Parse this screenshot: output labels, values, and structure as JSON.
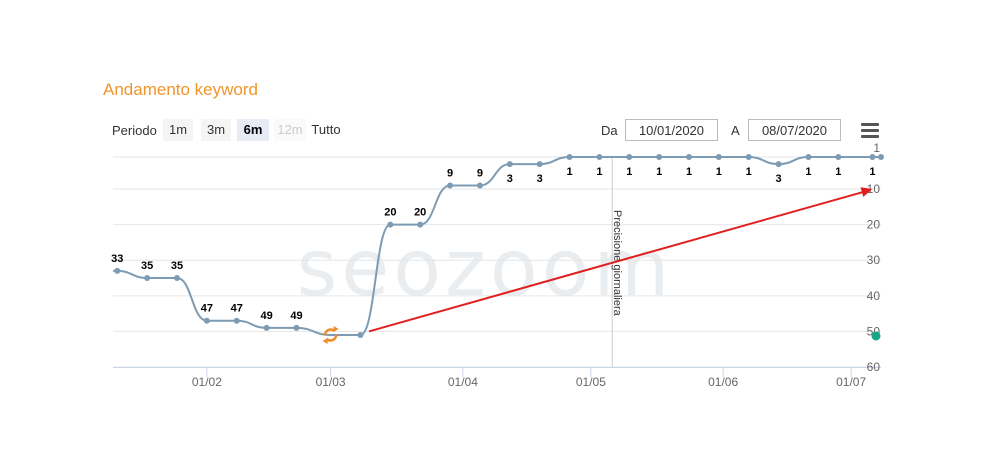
{
  "title": "Andamento keyword",
  "range_selector": {
    "label": "Periodo",
    "buttons": [
      {
        "label": "1m",
        "state": "normal"
      },
      {
        "label": "3m",
        "state": "normal"
      },
      {
        "label": "6m",
        "state": "selected"
      },
      {
        "label": "12m",
        "state": "disabled"
      },
      {
        "label": "Tutto",
        "state": "plain"
      }
    ]
  },
  "date_range": {
    "from_label": "Da",
    "from_value": "10/01/2020",
    "to_label": "A",
    "to_value": "08/07/2020"
  },
  "menu_icon": "hamburger-menu-icon",
  "watermark": "seozoom",
  "chart_data": {
    "type": "line",
    "title": "Andamento keyword",
    "x_tick_labels": [
      "01/02",
      "01/03",
      "01/04",
      "01/05",
      "01/06",
      "01/07"
    ],
    "y_tick_labels": [
      "1",
      "10",
      "20",
      "30",
      "40",
      "50",
      "60"
    ],
    "y_reversed": true,
    "ylim": [
      1,
      60
    ],
    "xlim": [
      "2020-01-10",
      "2020-07-08"
    ],
    "grid": true,
    "series": [
      {
        "color": "#7d9cb4",
        "points": [
          {
            "x": "2020-01-11",
            "y": 33,
            "label": "33"
          },
          {
            "x": "2020-01-18",
            "y": 35,
            "label": "35"
          },
          {
            "x": "2020-01-25",
            "y": 35,
            "label": "35"
          },
          {
            "x": "2020-02-01",
            "y": 47,
            "label": "47"
          },
          {
            "x": "2020-02-08",
            "y": 47,
            "label": "47"
          },
          {
            "x": "2020-02-15",
            "y": 49,
            "label": "49"
          },
          {
            "x": "2020-02-22",
            "y": 49,
            "label": "49"
          },
          {
            "x": "2020-03-01",
            "y": 51,
            "label": ""
          },
          {
            "x": "2020-03-08",
            "y": 51,
            "label": ""
          },
          {
            "x": "2020-03-15",
            "y": 20,
            "label": "20"
          },
          {
            "x": "2020-03-22",
            "y": 20,
            "label": "20"
          },
          {
            "x": "2020-03-29",
            "y": 9,
            "label": "9"
          },
          {
            "x": "2020-04-05",
            "y": 9,
            "label": "9"
          },
          {
            "x": "2020-04-12",
            "y": 3,
            "label": "3"
          },
          {
            "x": "2020-04-19",
            "y": 3,
            "label": "3"
          },
          {
            "x": "2020-04-26",
            "y": 1,
            "label": "1"
          },
          {
            "x": "2020-05-03",
            "y": 1,
            "label": "1"
          },
          {
            "x": "2020-05-10",
            "y": 1,
            "label": "1"
          },
          {
            "x": "2020-05-17",
            "y": 1,
            "label": "1"
          },
          {
            "x": "2020-05-24",
            "y": 1,
            "label": "1"
          },
          {
            "x": "2020-05-31",
            "y": 1,
            "label": "1"
          },
          {
            "x": "2020-06-07",
            "y": 1,
            "label": "1"
          },
          {
            "x": "2020-06-14",
            "y": 3,
            "label": "3"
          },
          {
            "x": "2020-06-21",
            "y": 1,
            "label": "1"
          },
          {
            "x": "2020-06-28",
            "y": 1,
            "label": "1"
          },
          {
            "x": "2020-07-06",
            "y": 1,
            "label": "1"
          },
          {
            "x": "2020-07-08",
            "y": 1,
            "label": ""
          }
        ]
      }
    ],
    "annotations": [
      {
        "type": "vertical-line",
        "x": "2020-05-06",
        "text": "Precisione giornaliera"
      },
      {
        "type": "flag-icon",
        "x": "2020-03-01",
        "y": 51,
        "icon": "refresh-icon",
        "color": "#f08c28"
      },
      {
        "type": "arrow",
        "from": {
          "x": "2020-03-10",
          "y": 50
        },
        "to": {
          "x": "2020-07-06",
          "y": 10
        },
        "color": "#e02020"
      },
      {
        "type": "marker",
        "y": 51,
        "color": "#1aa68a"
      }
    ]
  }
}
